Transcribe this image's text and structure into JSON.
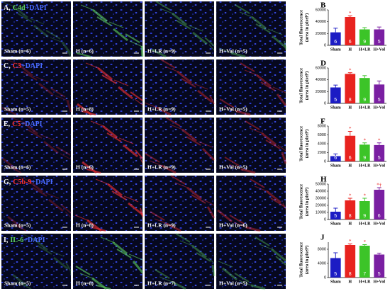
{
  "panels": [
    {
      "letter": "A,",
      "stain": "C4d",
      "dapi": "+DAPI",
      "stain_color": "#5fd35f",
      "groups": [
        "Sham (n=6)",
        "H (n=6)",
        "H+LR (n=9)",
        "H+Vol (n=5)"
      ]
    },
    {
      "letter": "C,",
      "stain": "C3",
      "dapi": "+DAPI",
      "stain_color": "#ff3030",
      "groups": [
        "Sham (n=5)",
        "H (n=8)",
        "H+LR (n=9)",
        "H+Vol (n=5)"
      ]
    },
    {
      "letter": "E,",
      "stain": "C5",
      "dapi": "+DAPI",
      "stain_color": "#ff3030",
      "groups": [
        "Sham (n=6)",
        "H (n=6)",
        "H+LR (n=9)",
        "H+Vol (n=5)"
      ]
    },
    {
      "letter": "G,",
      "stain": "C5b-9",
      "dapi": "+DAPI",
      "stain_color": "#ff3030",
      "groups": [
        "Sham (n=5)",
        "H (n=8)",
        "H+LR (n=9)",
        "H+Vol (n=6)"
      ]
    },
    {
      "letter": "I,",
      "stain": "IL-6",
      "dapi": "+DAPI",
      "stain_color": "#5fd35f",
      "groups": [
        "Sham (n=5)",
        "H (n=8)",
        "H+LR (n=7)",
        "H+Vol (n=5)"
      ]
    }
  ],
  "chart_data": [
    {
      "type": "bar",
      "label": "B",
      "ylabel": [
        "Total fluorescence",
        "(area in pixel²)"
      ],
      "categories": [
        "Sham",
        "H",
        "H+LR",
        "H+Vol"
      ],
      "values": [
        22000,
        48000,
        27000,
        27000
      ],
      "errors": [
        7000,
        2000,
        3000,
        4000
      ],
      "n": [
        6,
        6,
        9,
        5
      ],
      "annotations": [
        null,
        "*",
        null,
        null
      ],
      "colors": [
        "#1c1cc4",
        "#e8231f",
        "#3cc428",
        "#7a1fa2"
      ],
      "ylim": [
        0,
        60000
      ],
      "yticks": [
        0,
        20000,
        40000,
        60000
      ]
    },
    {
      "type": "bar",
      "label": "D",
      "ylabel": [
        "Total fluorescence",
        "(area in pixel²)"
      ],
      "categories": [
        "Sham",
        "H",
        "H+LR",
        "H+Vol"
      ],
      "values": [
        27000,
        50000,
        43000,
        32000
      ],
      "errors": [
        4000,
        2000,
        4000,
        6000
      ],
      "n": [
        5,
        8,
        9,
        5
      ],
      "annotations": [
        null,
        "*",
        null,
        null
      ],
      "colors": [
        "#1c1cc4",
        "#e8231f",
        "#3cc428",
        "#7a1fa2"
      ],
      "ylim": [
        0,
        60000
      ],
      "yticks": [
        0,
        20000,
        40000,
        60000
      ]
    },
    {
      "type": "bar",
      "label": "F",
      "ylabel": [
        "Total fluorescence",
        "(area in pixel²)"
      ],
      "categories": [
        "Sham",
        "H",
        "H+LR",
        "H+Vol"
      ],
      "values": [
        1200,
        5800,
        3800,
        3700
      ],
      "errors": [
        500,
        1000,
        400,
        500
      ],
      "n": [
        6,
        6,
        9,
        5
      ],
      "annotations": [
        null,
        "*",
        "*",
        "*"
      ],
      "colors": [
        "#1c1cc4",
        "#e8231f",
        "#3cc428",
        "#7a1fa2"
      ],
      "ylim": [
        0,
        8000
      ],
      "yticks": [
        0,
        2000,
        4000,
        6000,
        8000
      ]
    },
    {
      "type": "bar",
      "label": "H",
      "ylabel": [
        "Total fluorescence",
        "(area in pixel²)"
      ],
      "categories": [
        "Sham",
        "H",
        "H+LR",
        "H+Vol"
      ],
      "values": [
        11000,
        27000,
        26000,
        42000
      ],
      "errors": [
        5000,
        3000,
        4000,
        3000
      ],
      "n": [
        5,
        8,
        9,
        6
      ],
      "annotations": [
        null,
        "*",
        "*",
        "*†"
      ],
      "colors": [
        "#1c1cc4",
        "#e8231f",
        "#3cc428",
        "#7a1fa2"
      ],
      "ylim": [
        0,
        50000
      ],
      "yticks": [
        0,
        10000,
        20000,
        30000,
        40000,
        50000
      ]
    },
    {
      "type": "bar",
      "label": "J",
      "ylabel": [
        "Total fluorescence",
        "(area in pixel²)"
      ],
      "categories": [
        "Sham",
        "H",
        "H+LR",
        "H+Vol"
      ],
      "values": [
        5500,
        9200,
        9000,
        6500
      ],
      "errors": [
        1500,
        300,
        300,
        400
      ],
      "n": [
        5,
        8,
        7,
        5
      ],
      "annotations": [
        null,
        "*",
        "*",
        null
      ],
      "colors": [
        "#1c1cc4",
        "#e8231f",
        "#3cc428",
        "#7a1fa2"
      ],
      "ylim": [
        0,
        10000
      ],
      "yticks": [
        0,
        4000,
        8000
      ]
    }
  ]
}
